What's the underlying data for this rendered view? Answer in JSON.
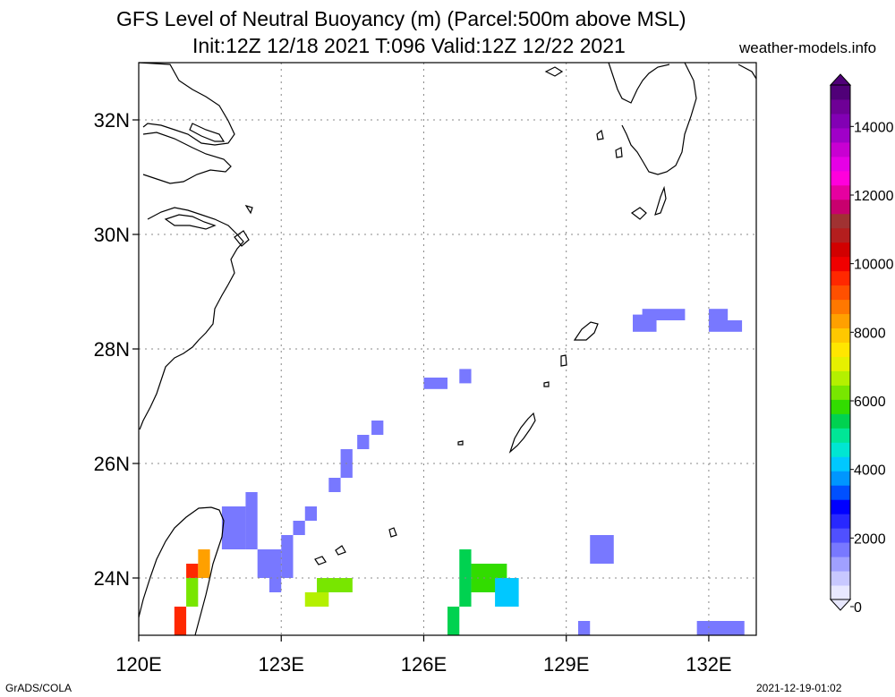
{
  "title_line1": "GFS Level of Neutral Buoyancy (m) (Parcel:500m above MSL)",
  "title_line2": "Init:12Z 12/18 2021 T:096 Valid:12Z 12/22 2021",
  "site": "weather-models.info",
  "footer_left": "GrADS/COLA",
  "footer_right": "2021-12-19-01:02",
  "map": {
    "lon_range": [
      120,
      133
    ],
    "lat_range": [
      23,
      33
    ],
    "lon_ticks": [
      {
        "value": 120,
        "label": "120E"
      },
      {
        "value": 123,
        "label": "123E"
      },
      {
        "value": 126,
        "label": "126E"
      },
      {
        "value": 129,
        "label": "129E"
      },
      {
        "value": 132,
        "label": "132E"
      }
    ],
    "lat_ticks": [
      {
        "value": 24,
        "label": "24N"
      },
      {
        "value": 26,
        "label": "26N"
      },
      {
        "value": 28,
        "label": "28N"
      },
      {
        "value": 30,
        "label": "30N"
      },
      {
        "value": 32,
        "label": "32N"
      }
    ],
    "grid_lons": [
      123,
      126,
      129,
      132
    ],
    "grid_lats": [
      24,
      26,
      28,
      30,
      32
    ]
  },
  "colorbar": {
    "min": 0,
    "max": 15000,
    "labels": [
      {
        "value": 0,
        "label": "0"
      },
      {
        "value": 2000,
        "label": "2000"
      },
      {
        "value": 4000,
        "label": "4000"
      },
      {
        "value": 6000,
        "label": "6000"
      },
      {
        "value": 8000,
        "label": "8000"
      },
      {
        "value": 10000,
        "label": "10000"
      },
      {
        "value": 12000,
        "label": "12000"
      },
      {
        "value": 14000,
        "label": "14000"
      }
    ],
    "colors": [
      "#e8e8ff",
      "#c8c8ff",
      "#a0a0ff",
      "#7878ff",
      "#5050ff",
      "#2828ff",
      "#0000ff",
      "#0050ff",
      "#0096ff",
      "#00c8ff",
      "#00e6d2",
      "#00e696",
      "#00d250",
      "#32dc00",
      "#78e600",
      "#b4f000",
      "#e6f000",
      "#ffe600",
      "#ffc800",
      "#ffa000",
      "#ff7800",
      "#ff5000",
      "#ff2800",
      "#f00000",
      "#d20000",
      "#b41e1e",
      "#a03232",
      "#c8006e",
      "#e600a0",
      "#ff00dc",
      "#e600e6",
      "#c800d2",
      "#a000c8",
      "#8200b4",
      "#6e0096",
      "#500078"
    ]
  },
  "cells": [
    {
      "lon": 130.4,
      "lat": 28.3,
      "w": 0.5,
      "h": 0.3,
      "value": 1500
    },
    {
      "lon": 130.6,
      "lat": 28.5,
      "w": 0.9,
      "h": 0.2,
      "value": 1500
    },
    {
      "lon": 132.0,
      "lat": 28.3,
      "w": 0.7,
      "h": 0.2,
      "value": 1500
    },
    {
      "lon": 132.0,
      "lat": 28.5,
      "w": 0.4,
      "h": 0.2,
      "value": 1500
    },
    {
      "lon": 126.0,
      "lat": 27.3,
      "w": 0.5,
      "h": 0.2,
      "value": 1500
    },
    {
      "lon": 126.75,
      "lat": 27.4,
      "w": 0.25,
      "h": 0.25,
      "value": 1500
    },
    {
      "lon": 124.9,
      "lat": 26.5,
      "w": 0.25,
      "h": 0.25,
      "value": 1500
    },
    {
      "lon": 124.6,
      "lat": 26.25,
      "w": 0.25,
      "h": 0.25,
      "value": 1500
    },
    {
      "lon": 124.25,
      "lat": 25.75,
      "w": 0.25,
      "h": 0.5,
      "value": 1500
    },
    {
      "lon": 124.0,
      "lat": 25.5,
      "w": 0.25,
      "h": 0.25,
      "value": 1500
    },
    {
      "lon": 123.5,
      "lat": 25.0,
      "w": 0.25,
      "h": 0.25,
      "value": 1500
    },
    {
      "lon": 123.25,
      "lat": 24.75,
      "w": 0.25,
      "h": 0.25,
      "value": 1500
    },
    {
      "lon": 121.75,
      "lat": 24.5,
      "w": 0.5,
      "h": 0.75,
      "value": 1400
    },
    {
      "lon": 122.25,
      "lat": 24.5,
      "w": 0.25,
      "h": 1.0,
      "value": 1500
    },
    {
      "lon": 122.5,
      "lat": 24.0,
      "w": 0.5,
      "h": 0.5,
      "value": 1500
    },
    {
      "lon": 123.0,
      "lat": 24.0,
      "w": 0.25,
      "h": 0.75,
      "value": 1500
    },
    {
      "lon": 122.75,
      "lat": 23.75,
      "w": 0.25,
      "h": 0.25,
      "value": 1500
    },
    {
      "lon": 129.5,
      "lat": 24.25,
      "w": 0.5,
      "h": 0.5,
      "value": 1500
    },
    {
      "lon": 129.25,
      "lat": 23.0,
      "w": 0.25,
      "h": 0.25,
      "value": 1500
    },
    {
      "lon": 131.75,
      "lat": 23.0,
      "w": 1.0,
      "h": 0.25,
      "value": 1500
    },
    {
      "lon": 121.0,
      "lat": 23.5,
      "w": 0.25,
      "h": 0.5,
      "value": 6000
    },
    {
      "lon": 121.0,
      "lat": 24.0,
      "w": 0.25,
      "h": 0.25,
      "value": 9500
    },
    {
      "lon": 121.25,
      "lat": 24.0,
      "w": 0.25,
      "h": 0.5,
      "value": 8000
    },
    {
      "lon": 120.75,
      "lat": 23.0,
      "w": 0.25,
      "h": 0.5,
      "value": 9500
    },
    {
      "lon": 123.5,
      "lat": 23.5,
      "w": 0.5,
      "h": 0.25,
      "value": 6500
    },
    {
      "lon": 123.75,
      "lat": 23.75,
      "w": 0.75,
      "h": 0.25,
      "value": 6000
    },
    {
      "lon": 126.75,
      "lat": 23.5,
      "w": 0.25,
      "h": 1.0,
      "value": 5000
    },
    {
      "lon": 126.5,
      "lat": 23.0,
      "w": 0.25,
      "h": 0.5,
      "value": 5000
    },
    {
      "lon": 127.0,
      "lat": 23.75,
      "w": 0.75,
      "h": 0.5,
      "value": 5500
    },
    {
      "lon": 127.5,
      "lat": 23.5,
      "w": 0.5,
      "h": 0.5,
      "value": 4000
    }
  ]
}
